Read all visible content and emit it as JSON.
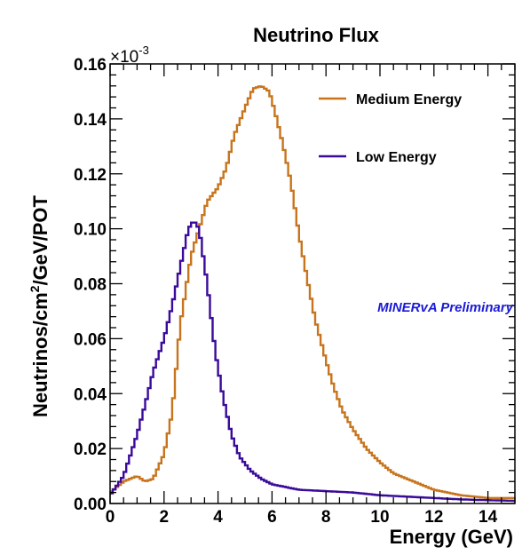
{
  "chart_data": {
    "type": "line",
    "title": "Neutrino Flux",
    "xlabel": "Energy (GeV)",
    "ylabel_main": "Neutrinos/cm",
    "ylabel_sup": "2",
    "ylabel_rest": "/GeV/POT",
    "y_multiplier_base": "×10",
    "y_multiplier_exp": "-3",
    "xlim": [
      0,
      15
    ],
    "ylim": [
      0,
      0.16
    ],
    "x_ticks": [
      0,
      2,
      4,
      6,
      8,
      10,
      12,
      14
    ],
    "x_tick_labels": [
      "0",
      "2",
      "4",
      "6",
      "8",
      "10",
      "12",
      "14"
    ],
    "y_ticks": [
      0,
      0.02,
      0.04,
      0.06,
      0.08,
      0.1,
      0.12,
      0.14,
      0.16
    ],
    "y_tick_labels": [
      "0.00",
      "0.02",
      "0.04",
      "0.06",
      "0.08",
      "0.10",
      "0.12",
      "0.14",
      "0.16"
    ],
    "legend_position": "top-right",
    "annotation": "MINERvA Preliminary",
    "annotation_color": "#1a1ad6",
    "series": [
      {
        "name": "Medium Energy",
        "color": "#c8741c",
        "x": [
          0,
          0.5,
          1,
          1.3,
          1.6,
          2,
          2.3,
          2.6,
          3,
          3.3,
          3.6,
          4,
          4.3,
          4.6,
          5,
          5.3,
          5.6,
          5.9,
          6.1,
          6.4,
          6.7,
          7,
          7.3,
          7.6,
          8,
          8.3,
          8.6,
          9,
          9.5,
          10,
          10.5,
          11,
          11.5,
          12,
          12.5,
          13,
          14,
          15
        ],
        "y": [
          0.004,
          0.008,
          0.01,
          0.008,
          0.009,
          0.018,
          0.033,
          0.065,
          0.09,
          0.1,
          0.11,
          0.115,
          0.122,
          0.134,
          0.144,
          0.151,
          0.152,
          0.15,
          0.143,
          0.131,
          0.117,
          0.098,
          0.082,
          0.067,
          0.052,
          0.042,
          0.034,
          0.027,
          0.02,
          0.015,
          0.011,
          0.009,
          0.007,
          0.005,
          0.004,
          0.003,
          0.002,
          0.002
        ]
      },
      {
        "name": "Low Energy",
        "color": "#3a0a9a",
        "x": [
          0,
          0.5,
          1,
          1.3,
          1.6,
          2,
          2.3,
          2.6,
          2.9,
          3.1,
          3.3,
          3.6,
          3.9,
          4.2,
          4.5,
          4.8,
          5.2,
          5.6,
          6,
          7,
          8,
          9,
          10,
          11,
          12,
          13,
          14,
          15
        ],
        "y": [
          0.003,
          0.01,
          0.025,
          0.036,
          0.048,
          0.06,
          0.072,
          0.086,
          0.1,
          0.103,
          0.1,
          0.08,
          0.055,
          0.038,
          0.025,
          0.017,
          0.012,
          0.009,
          0.007,
          0.005,
          0.0045,
          0.004,
          0.003,
          0.0025,
          0.002,
          0.0015,
          0.0012,
          0.001
        ]
      }
    ]
  }
}
